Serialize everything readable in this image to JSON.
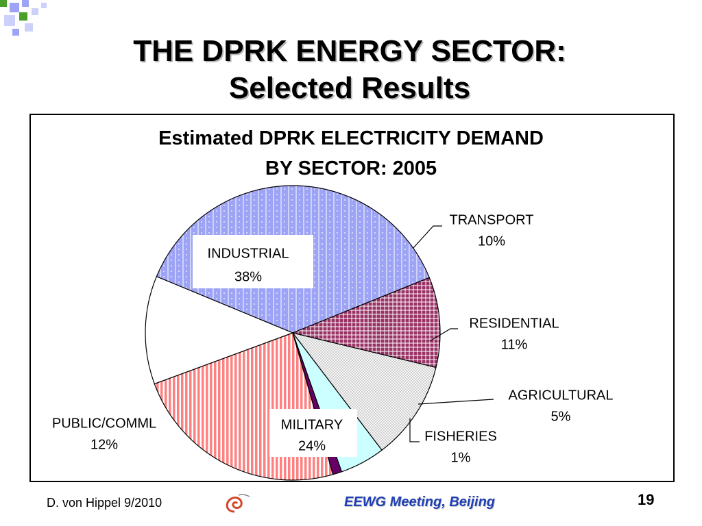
{
  "slide": {
    "title_line1": "THE DPRK ENERGY SECTOR:",
    "title_line2": "Selected Results"
  },
  "footer": {
    "author": "D. von Hippel  9/2010",
    "event": "EEWG Meeting, Beijing",
    "page_number": "19"
  },
  "chart_data": {
    "type": "pie",
    "title_line1": "Estimated DPRK ELECTRICITY DEMAND",
    "title_line2": "BY SECTOR: 2005",
    "slices": [
      {
        "label": "INDUSTRIAL",
        "value": 38,
        "value_label": "38%",
        "color": "#9ea4f5",
        "pattern": "dotted-vertical"
      },
      {
        "label": "TRANSPORT",
        "value": 10,
        "value_label": "10%",
        "color": "#993366",
        "pattern": "crosshatch"
      },
      {
        "label": "RESIDENTIAL",
        "value": 11,
        "value_label": "11%",
        "color": "#ffffff",
        "pattern": "fine-grid"
      },
      {
        "label": "AGRICULTURAL",
        "value": 5,
        "value_label": "5%",
        "color": "#ccffff",
        "pattern": "solid"
      },
      {
        "label": "FISHERIES",
        "value": 1,
        "value_label": "1%",
        "color": "#660066",
        "pattern": "solid"
      },
      {
        "label": "MILITARY",
        "value": 24,
        "value_label": "24%",
        "color": "#ff8080",
        "pattern": "vertical-stripes"
      },
      {
        "label": "PUBLIC/COMML",
        "value": 12,
        "value_label": "12%",
        "color": "#ffffff",
        "pattern": "solid"
      }
    ]
  }
}
